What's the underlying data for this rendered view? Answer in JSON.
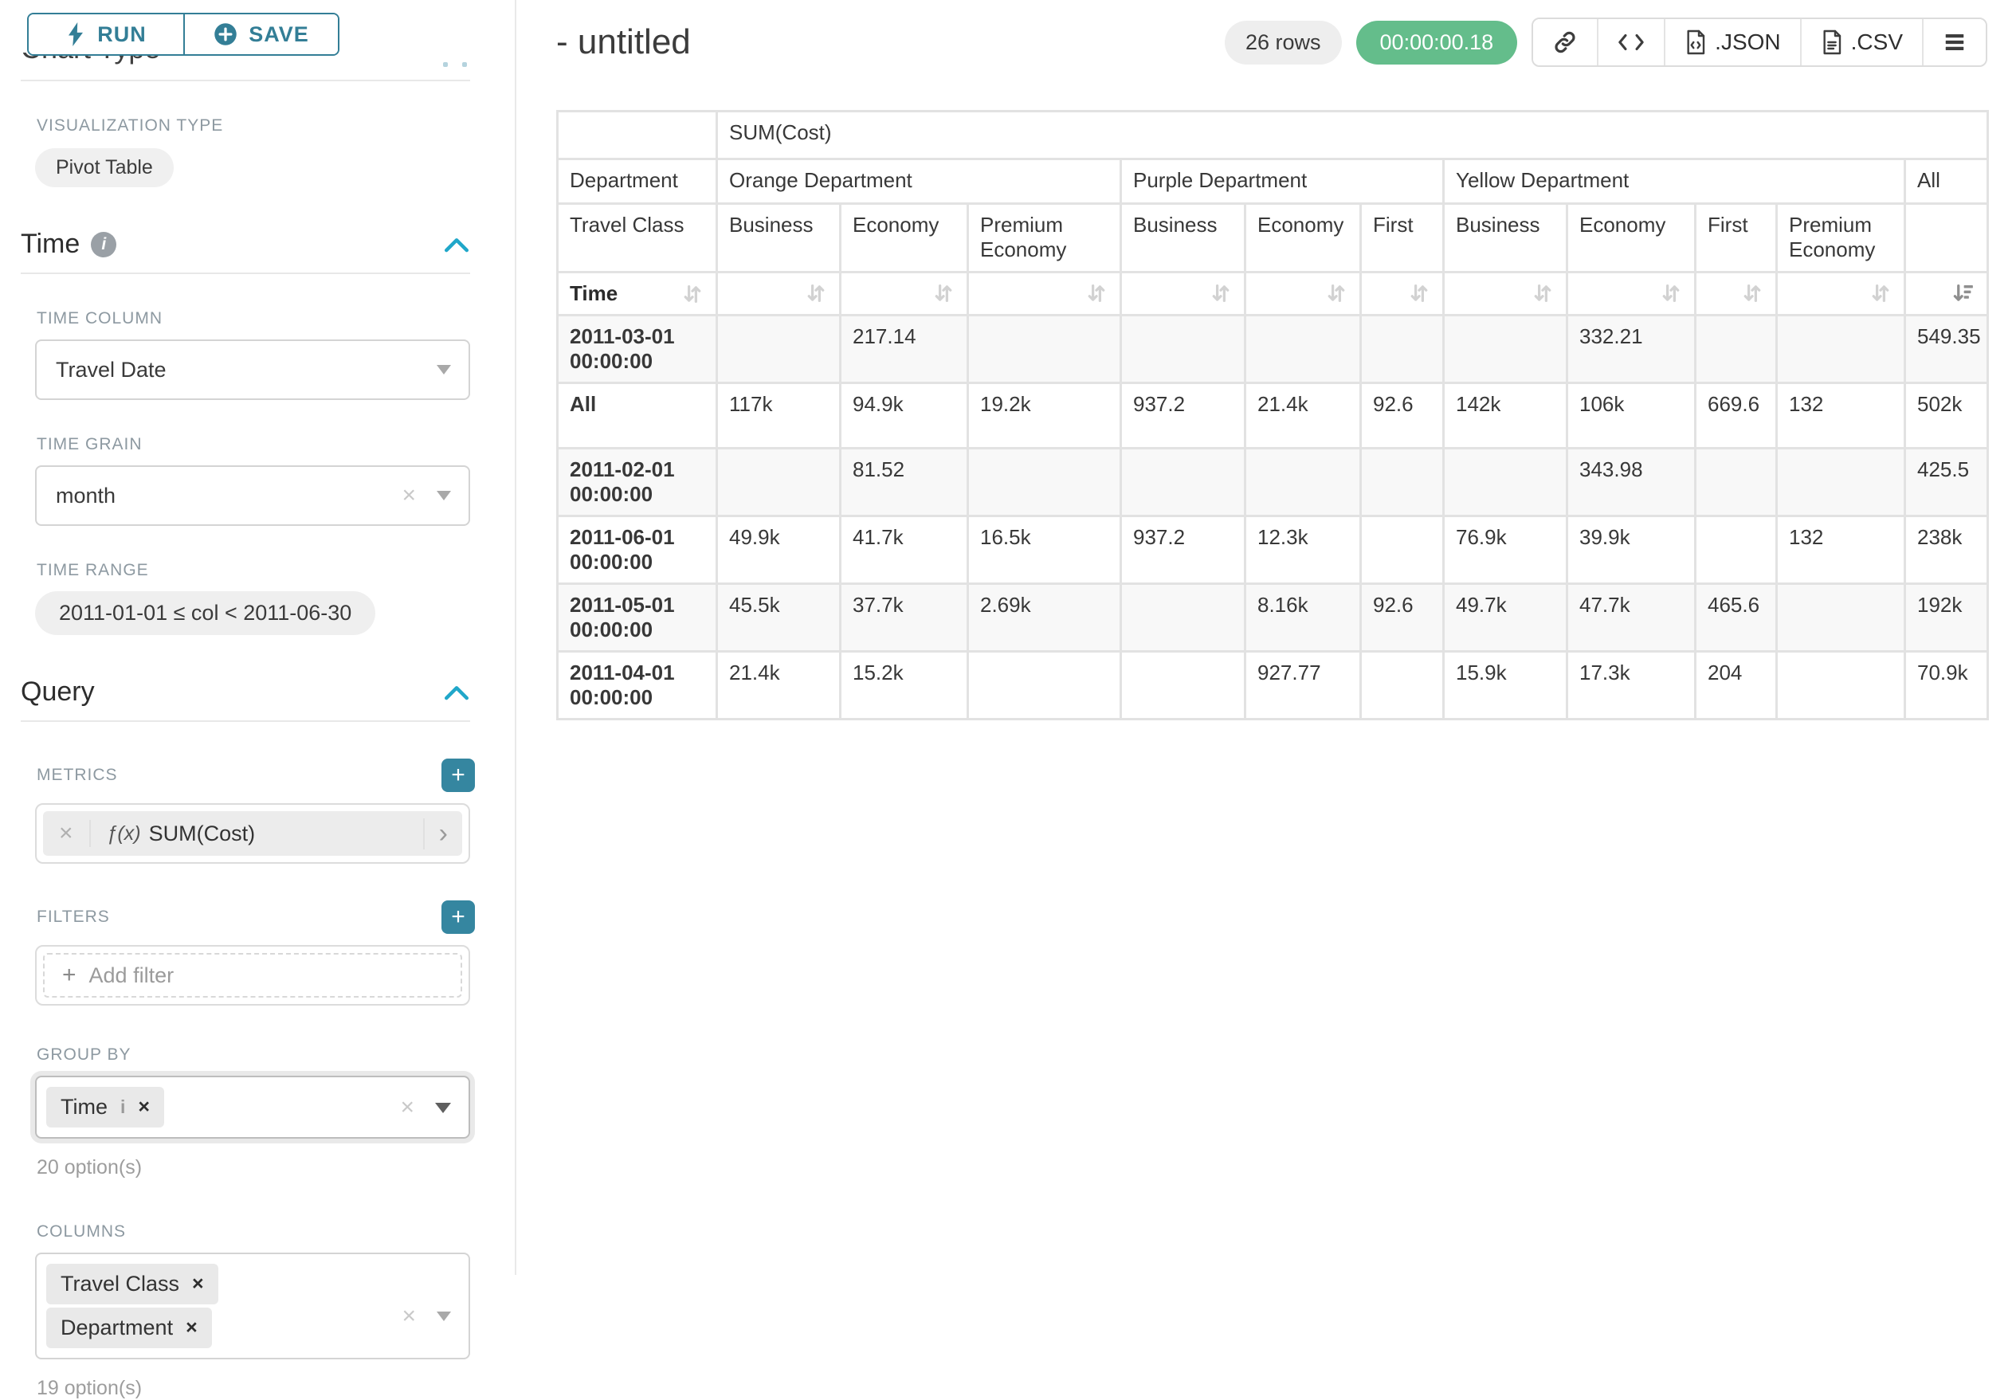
{
  "colors": {
    "accent": "#20a7c9",
    "button_teal": "#337e96",
    "plus_teal": "#3586a0",
    "success_green": "#64bd8b"
  },
  "sidebar": {
    "run_label": "RUN",
    "save_label": "SAVE",
    "chart_type_title": "Chart Type",
    "visualization": {
      "label": "VISUALIZATION TYPE",
      "value": "Pivot Table"
    },
    "time": {
      "title": "Time",
      "time_column": {
        "label": "TIME COLUMN",
        "value": "Travel Date"
      },
      "time_grain": {
        "label": "TIME GRAIN",
        "value": "month"
      },
      "time_range": {
        "label": "TIME RANGE",
        "value": "2011-01-01 ≤ col < 2011-06-30"
      }
    },
    "query": {
      "title": "Query",
      "metrics": {
        "label": "METRICS",
        "fx": "ƒ(x)",
        "value": "SUM(Cost)"
      },
      "filters": {
        "label": "FILTERS",
        "placeholder": "Add filter"
      },
      "group_by": {
        "label": "GROUP BY",
        "chips": [
          {
            "label": "Time",
            "info": true
          }
        ],
        "options_hint": "20 option(s)"
      },
      "columns": {
        "label": "COLUMNS",
        "chips": [
          {
            "label": "Department",
            "info": false
          },
          {
            "label": "Travel Class",
            "info": false
          }
        ],
        "options_hint": "19 option(s)"
      }
    }
  },
  "header": {
    "title": "- untitled",
    "rows_badge": "26 rows",
    "timer": "00:00:00.18",
    "json_label": ".JSON",
    "csv_label": ".CSV",
    "icons": [
      "link-icon",
      "embed-code-icon",
      "json-file-icon",
      "csv-file-icon",
      "menu-icon"
    ]
  },
  "pivot": {
    "metric_header": "SUM(Cost)",
    "department_label": "Department",
    "travel_class_label": "Travel Class",
    "time_label": "Time",
    "column_groups": [
      {
        "name": "Orange Department",
        "cols": [
          "Business",
          "Economy",
          "Premium Economy"
        ]
      },
      {
        "name": "Purple Department",
        "cols": [
          "Business",
          "Economy",
          "First"
        ]
      },
      {
        "name": "Yellow Department",
        "cols": [
          "Business",
          "Economy",
          "First",
          "Premium Economy"
        ]
      },
      {
        "name": "All",
        "cols": [
          ""
        ]
      }
    ],
    "sort_state": {
      "sorted_column": "All",
      "direction": "desc"
    },
    "rows": [
      {
        "label": "2011-03-01 00:00:00",
        "values": [
          "",
          "217.14",
          "",
          "",
          "",
          "",
          "",
          "332.21",
          "",
          "",
          "549.35"
        ]
      },
      {
        "label": "All",
        "values": [
          "117k",
          "94.9k",
          "19.2k",
          "937.2",
          "21.4k",
          "92.6",
          "142k",
          "106k",
          "669.6",
          "132",
          "502k"
        ]
      },
      {
        "label": "2011-02-01 00:00:00",
        "values": [
          "",
          "81.52",
          "",
          "",
          "",
          "",
          "",
          "343.98",
          "",
          "",
          "425.5"
        ]
      },
      {
        "label": "2011-06-01 00:00:00",
        "values": [
          "49.9k",
          "41.7k",
          "16.5k",
          "937.2",
          "12.3k",
          "",
          "76.9k",
          "39.9k",
          "",
          "132",
          "238k"
        ]
      },
      {
        "label": "2011-05-01 00:00:00",
        "values": [
          "45.5k",
          "37.7k",
          "2.69k",
          "",
          "8.16k",
          "92.6",
          "49.7k",
          "47.7k",
          "465.6",
          "",
          "192k"
        ]
      },
      {
        "label": "2011-04-01 00:00:00",
        "values": [
          "21.4k",
          "15.2k",
          "",
          "",
          "927.77",
          "",
          "15.9k",
          "17.3k",
          "204",
          "",
          "70.9k"
        ]
      }
    ]
  }
}
